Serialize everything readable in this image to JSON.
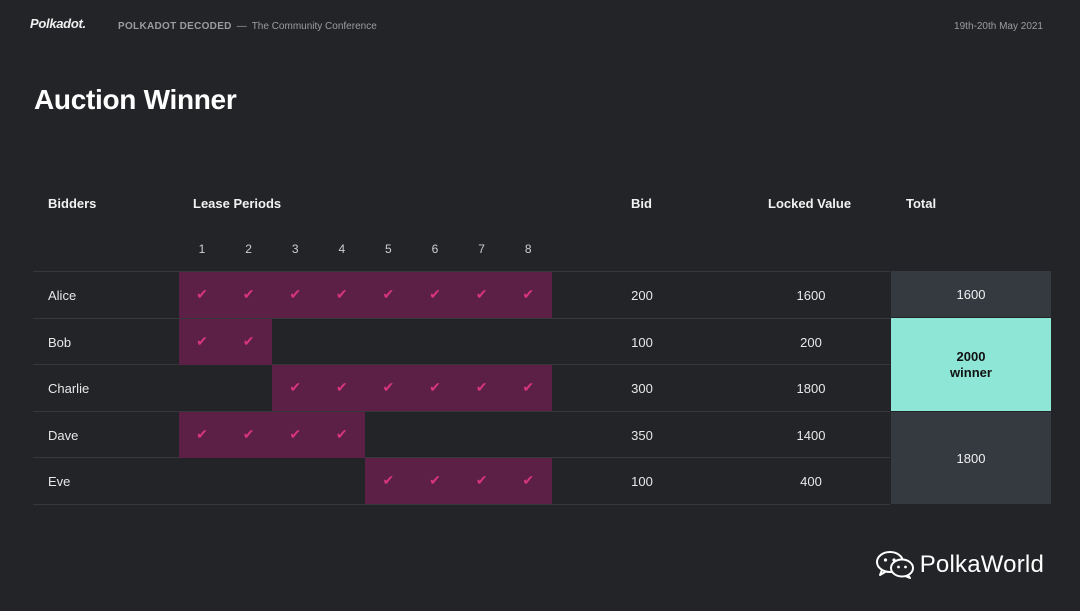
{
  "header": {
    "logo": "Polkadot.",
    "event_name": "POLKADOT DECODED",
    "event_sep": "—",
    "event_tagline": "The Community Conference",
    "date": "19th-20th May 2021"
  },
  "title": "Auction Winner",
  "table": {
    "columns": {
      "bidders": "Bidders",
      "lease_periods": "Lease Periods",
      "bid": "Bid",
      "locked_value": "Locked Value",
      "total": "Total"
    },
    "periods": [
      "1",
      "2",
      "3",
      "4",
      "5",
      "6",
      "7",
      "8"
    ],
    "check_glyph": "✔",
    "rows": [
      {
        "bidder": "Alice",
        "periods": [
          1,
          2,
          3,
          4,
          5,
          6,
          7,
          8
        ],
        "bid": "200",
        "locked_value": "1600"
      },
      {
        "bidder": "Bob",
        "periods": [
          1,
          2
        ],
        "bid": "100",
        "locked_value": "200"
      },
      {
        "bidder": "Charlie",
        "periods": [
          3,
          4,
          5,
          6,
          7,
          8
        ],
        "bid": "300",
        "locked_value": "1800"
      },
      {
        "bidder": "Dave",
        "periods": [
          1,
          2,
          3,
          4
        ],
        "bid": "350",
        "locked_value": "1400"
      },
      {
        "bidder": "Eve",
        "periods": [
          5,
          6,
          7,
          8
        ],
        "bid": "100",
        "locked_value": "400"
      }
    ],
    "totals": [
      {
        "value": "1600",
        "rows": "Alice"
      },
      {
        "value": "2000",
        "note": "winner",
        "rows": "Bob + Charlie",
        "winner": true
      },
      {
        "value": "1800",
        "rows": "Dave + Eve"
      }
    ]
  },
  "colors": {
    "background": "#222427",
    "lease_bar": "#5c1f45",
    "check": "#d8357f",
    "winner": "#8ee6d6",
    "total_cell": "#353a41"
  },
  "watermark": {
    "icon": "wechat-icon",
    "text": "PolkaWorld"
  }
}
